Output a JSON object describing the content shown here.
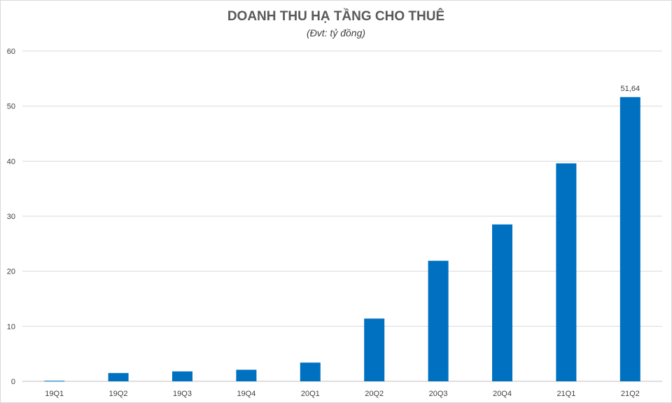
{
  "chart_data": {
    "type": "bar",
    "title": "DOANH THU HẠ TẦNG CHO THUÊ",
    "subtitle": "(Đvt: tỷ đồng)",
    "categories": [
      "19Q1",
      "19Q2",
      "19Q3",
      "19Q4",
      "20Q1",
      "20Q2",
      "20Q3",
      "20Q4",
      "21Q1",
      "21Q2"
    ],
    "values": [
      0.1,
      1.5,
      1.8,
      2.1,
      3.4,
      11.4,
      21.9,
      28.5,
      39.6,
      51.64
    ],
    "data_labels": {
      "9": "51,64"
    },
    "ylim": [
      0,
      60
    ],
    "yticks": [
      0,
      10,
      20,
      30,
      40,
      50,
      60
    ],
    "grid": true,
    "color": "#0070c0"
  }
}
